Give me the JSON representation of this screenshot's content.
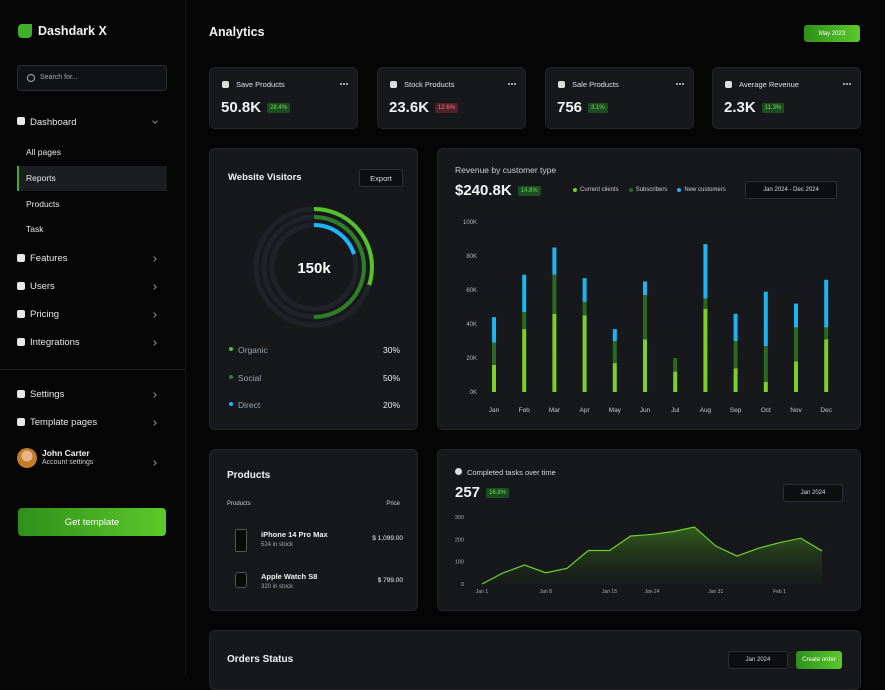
{
  "sidebar": {
    "brand": "Dashdark X",
    "search": "Search for...",
    "menu": [
      "Dashboard",
      "All pages",
      "Reports",
      "Products",
      "Task",
      "Features",
      "Users",
      "Pricing",
      "Integrations"
    ],
    "menu2": [
      "Settings",
      "Template pages"
    ],
    "user": {
      "name": "John Carter",
      "subtitle": "Account settings"
    },
    "cta": "Get template"
  },
  "header": {
    "title": "Analytics",
    "date": "May 2023"
  },
  "stats": [
    {
      "label": "Save Products",
      "value": "50.8K",
      "change": "28.4%"
    },
    {
      "label": "Stock Products",
      "value": "23.6K",
      "change": "12.6%"
    },
    {
      "label": "Sale Products",
      "value": "756",
      "change": "3.1%"
    },
    {
      "label": "Average Revenue",
      "value": "2.3K",
      "change": "11.3%"
    }
  ],
  "visitors": {
    "type": "pie",
    "title": "Website Visitors",
    "export": "Export",
    "total": "150k",
    "categories": [
      "Organic",
      "Social",
      "Direct"
    ],
    "values": [
      30,
      50,
      20
    ],
    "value_labels": [
      "30%",
      "50%",
      "20%"
    ],
    "colors": [
      "#55c22c",
      "#2e7f25",
      "#1fb5ff"
    ]
  },
  "revenue": {
    "type": "bar",
    "title": "Revenue by customer type",
    "total": "$240.8K",
    "change": "14.8%",
    "range": "Jan 2024 - Dec 2024",
    "categories": [
      "Jan",
      "Feb",
      "Mar",
      "Apr",
      "May",
      "Jun",
      "Jul",
      "Aug",
      "Sep",
      "Oct",
      "Nov",
      "Dec"
    ],
    "series": [
      {
        "name": "Current clients",
        "color": "#7ccf2a",
        "values": [
          16000,
          37000,
          46000,
          45000,
          17000,
          31000,
          12000,
          49000,
          14000,
          6000,
          18000,
          31000
        ]
      },
      {
        "name": "Subscribers",
        "color": "#2a6a1e",
        "values": [
          13000,
          10000,
          23000,
          8000,
          13000,
          26000,
          8000,
          6000,
          16000,
          21000,
          20000,
          7000
        ]
      },
      {
        "name": "New customers",
        "color": "#1eb4f0",
        "values": [
          15000,
          22000,
          16000,
          14000,
          7000,
          8000,
          0,
          32000,
          16000,
          32000,
          14000,
          28000
        ]
      }
    ],
    "ylim": [
      0,
      100000
    ],
    "yticks": [
      {
        "value": 0,
        "label": "0K"
      },
      {
        "value": 20000,
        "label": "20K"
      },
      {
        "value": 40000,
        "label": "40K"
      },
      {
        "value": 60000,
        "label": "60K"
      },
      {
        "value": 80000,
        "label": "80K"
      },
      {
        "value": 100000,
        "label": "100K"
      }
    ]
  },
  "products": {
    "title": "Products",
    "columns": [
      "Products",
      "Price"
    ],
    "rows": [
      {
        "name": "iPhone 14 Pro Max",
        "stock": "524 in stock",
        "price": "$ 1,099.00"
      },
      {
        "name": "Apple Watch S8",
        "stock": "320 in stock",
        "price": "$ 799.00"
      }
    ]
  },
  "tasks": {
    "type": "line",
    "title": "Completed tasks over time",
    "total": "257",
    "change": "16.8%",
    "range": "Jan 2024",
    "categories": [
      "Jan 1",
      null,
      null,
      "Jan 8",
      null,
      null,
      "Jan 15",
      null,
      "Jan 24",
      null,
      null,
      "Jan 31",
      null,
      null,
      "Feb 1",
      null,
      null
    ],
    "values": [
      0,
      50,
      85,
      50,
      70,
      150,
      150,
      215,
      222,
      235,
      255,
      170,
      125,
      160,
      185,
      205,
      148
    ],
    "color": "#6fcf2f",
    "ylim": [
      0,
      300
    ],
    "yticks": [
      0,
      100,
      200,
      300
    ]
  },
  "orders": {
    "title": "Orders Status",
    "range": "Jan 2024",
    "action": "Create order"
  }
}
